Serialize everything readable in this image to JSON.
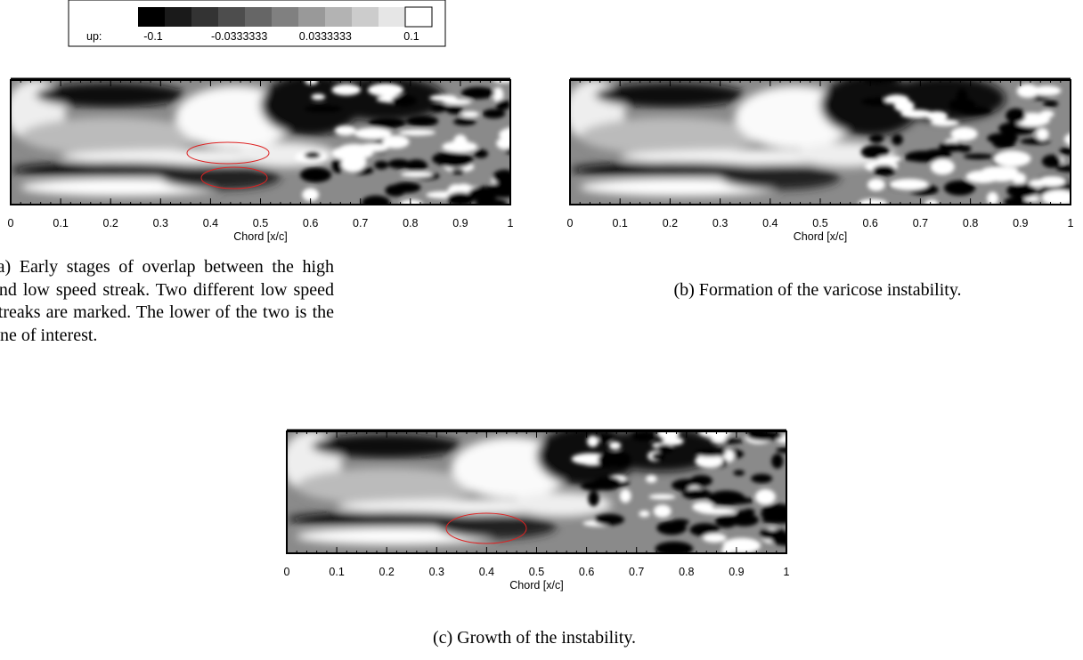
{
  "colorbar": {
    "label": "up:",
    "ticks": [
      -0.1,
      -0.0333333,
      0.0333333,
      0.1
    ]
  },
  "subfigures": [
    {
      "xlabel": "Chord [x/c]",
      "xlim": [
        0,
        1
      ],
      "xticks": [
        0,
        0.1,
        0.2,
        0.3,
        0.4,
        0.5,
        0.6,
        0.7,
        0.8,
        0.9,
        1
      ],
      "caption": "(a) Early stages of overlap between the high and low speed streak. Two different low speed streaks are marked. The lower of the two is the one of interest."
    },
    {
      "xlabel": "Chord [x/c]",
      "xlim": [
        0,
        1
      ],
      "xticks": [
        0,
        0.1,
        0.2,
        0.3,
        0.4,
        0.5,
        0.6,
        0.7,
        0.8,
        0.9,
        1
      ],
      "caption": "(b) Formation of the varicose instability."
    },
    {
      "xlabel": "Chord [x/c]",
      "xlim": [
        0,
        1
      ],
      "xticks": [
        0,
        0.1,
        0.2,
        0.3,
        0.4,
        0.5,
        0.6,
        0.7,
        0.8,
        0.9,
        1
      ],
      "caption": "(c) Growth of the instability."
    }
  ]
}
